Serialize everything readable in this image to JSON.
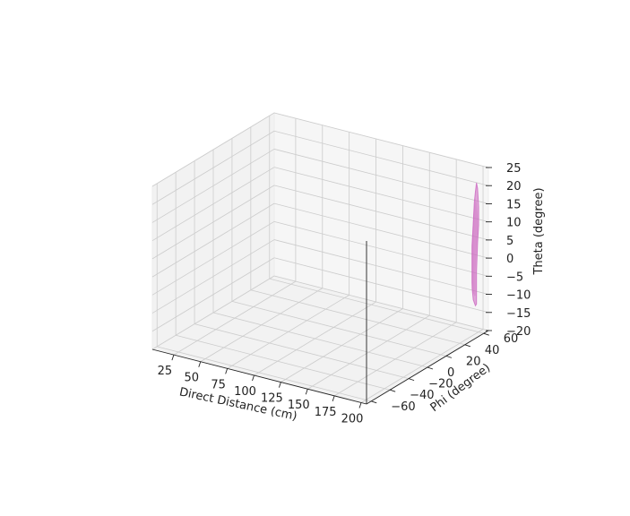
{
  "chart_data": {
    "type": "surface3d",
    "title": "",
    "xlabel": "Direct Distance (cm)",
    "ylabel": "Phi (degree)",
    "zlabel": "Theta (degree)",
    "xlim": [
      5,
      205
    ],
    "ylim": [
      -65,
      65
    ],
    "zlim": [
      -20,
      25
    ],
    "xticks": [
      25,
      50,
      75,
      100,
      125,
      150,
      175,
      200
    ],
    "yticks": [
      -60,
      -40,
      -20,
      0,
      20,
      40,
      60
    ],
    "zticks": [
      -20,
      -15,
      -10,
      -5,
      0,
      5,
      10,
      15,
      20,
      25
    ],
    "xtick_labels": [
      "25",
      "50",
      "75",
      "100",
      "125",
      "150",
      "175",
      "200"
    ],
    "ytick_labels": [
      "−60",
      "−40",
      "−20",
      "0",
      "20",
      "40",
      "60"
    ],
    "ztick_labels": [
      "−20",
      "−15",
      "−10",
      "−5",
      "0",
      "5",
      "10",
      "15",
      "20",
      "25"
    ],
    "grid": true,
    "series": [
      {
        "name": "surface",
        "color": "#cc66c0",
        "opacity": 0.55,
        "outline": [
          {
            "x": 199,
            "y": 58,
            "z": 19
          },
          {
            "x": 200,
            "y": 58,
            "z": 21.5
          },
          {
            "x": 201,
            "y": 58,
            "z": 20
          },
          {
            "x": 202,
            "y": 58,
            "z": 15
          },
          {
            "x": 202,
            "y": 58,
            "z": 10
          },
          {
            "x": 201,
            "y": 58,
            "z": 5
          },
          {
            "x": 200,
            "y": 58,
            "z": -3
          },
          {
            "x": 200,
            "y": 58,
            "z": -10
          },
          {
            "x": 200,
            "y": 58,
            "z": -12
          },
          {
            "x": 199,
            "y": 58,
            "z": -12.5
          },
          {
            "x": 197,
            "y": 58,
            "z": -11
          },
          {
            "x": 196,
            "y": 58,
            "z": -8
          },
          {
            "x": 196,
            "y": 58,
            "z": -3
          },
          {
            "x": 196,
            "y": 58,
            "z": 4
          },
          {
            "x": 197,
            "y": 58,
            "z": 10
          },
          {
            "x": 198,
            "y": 58,
            "z": 16
          }
        ]
      }
    ]
  }
}
